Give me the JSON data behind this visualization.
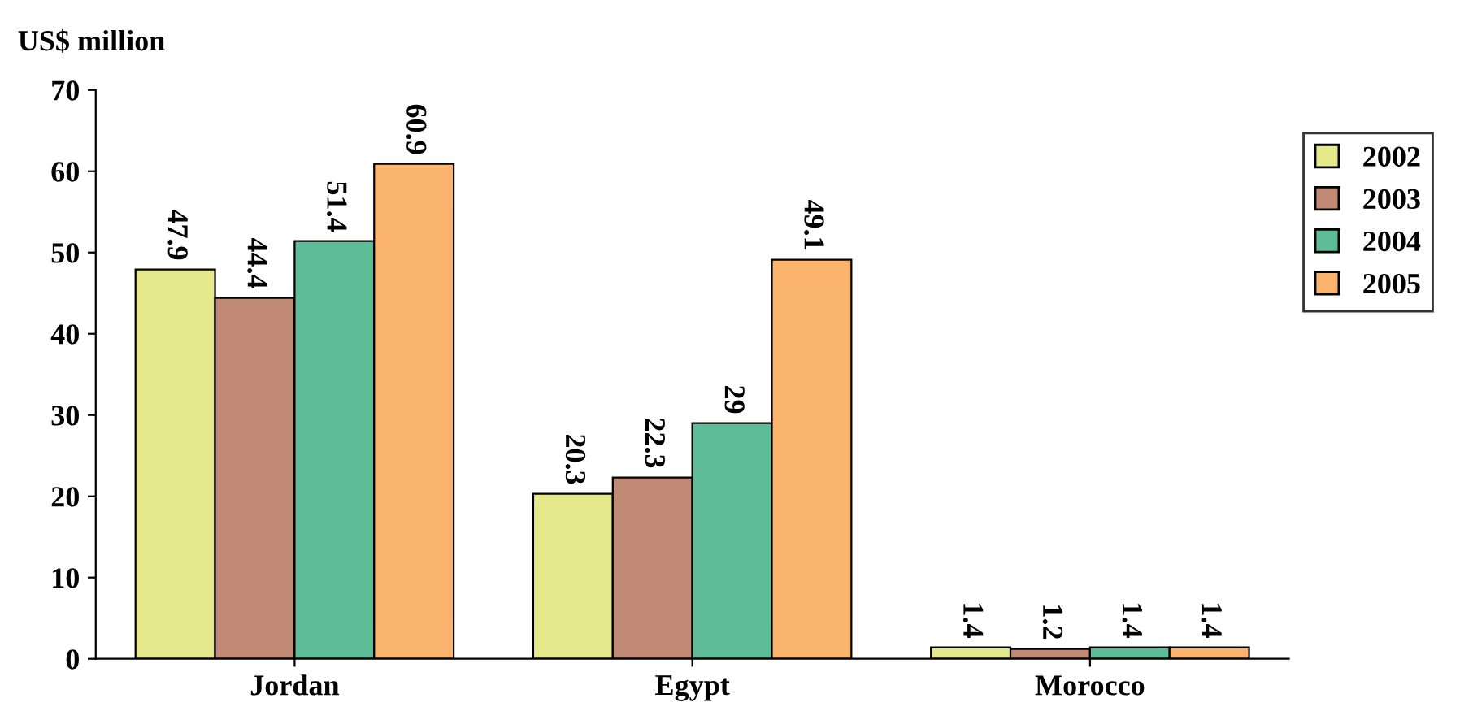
{
  "chart_data": {
    "type": "bar",
    "ylabel": "US$ million",
    "categories": [
      "Jordan",
      "Egypt",
      "Morocco"
    ],
    "series": [
      {
        "name": "2002",
        "color": "#e6e88c",
        "values": [
          47.9,
          20.3,
          1.4
        ]
      },
      {
        "name": "2003",
        "color": "#c08a74",
        "values": [
          44.4,
          22.3,
          1.2
        ]
      },
      {
        "name": "2004",
        "color": "#5fbc98",
        "values": [
          51.4,
          29,
          1.4
        ]
      },
      {
        "name": "2005",
        "color": "#fbb46e",
        "values": [
          60.9,
          49.1,
          1.4
        ]
      }
    ],
    "ylim": [
      0,
      70
    ],
    "yticks": [
      0,
      10,
      20,
      30,
      40,
      50,
      60,
      70
    ],
    "data_labels": true,
    "legend": "top right",
    "grid": false
  }
}
